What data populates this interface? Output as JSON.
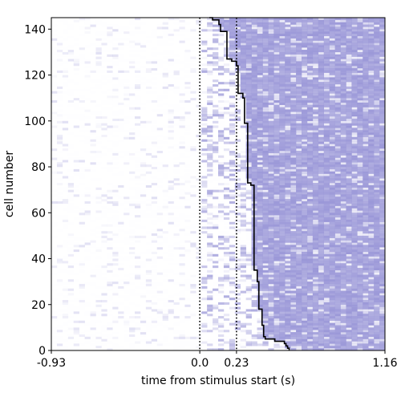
{
  "chart_data": {
    "type": "heatmap",
    "title": "",
    "xlabel": "time from stimulus start (s)",
    "ylabel": "cell number",
    "xlim": [
      -0.93,
      1.16
    ],
    "ylim": [
      0,
      145
    ],
    "x_ticks": [
      -0.93,
      0.0,
      0.23,
      1.16
    ],
    "x_tick_labels": [
      "-0.93",
      "0.0",
      "0.23",
      "1.16"
    ],
    "y_ticks": [
      0,
      20,
      40,
      60,
      80,
      100,
      120,
      140
    ],
    "y_tick_labels": [
      "0",
      "20",
      "40",
      "60",
      "80",
      "100",
      "120",
      "140"
    ],
    "n_cells": 145,
    "vertical_lines": [
      {
        "x": 0.0,
        "style": "dotted",
        "color": "#000000"
      },
      {
        "x": 0.23,
        "style": "dotted",
        "color": "#000000"
      }
    ],
    "response_onset_curve": {
      "color": "#000000",
      "points": [
        [
          0.56,
          0
        ],
        [
          0.55,
          1
        ],
        [
          0.54,
          2
        ],
        [
          0.53,
          3
        ],
        [
          0.47,
          4
        ],
        [
          0.41,
          5
        ],
        [
          0.4,
          6
        ],
        [
          0.4,
          10
        ],
        [
          0.39,
          11
        ],
        [
          0.39,
          17
        ],
        [
          0.37,
          18
        ],
        [
          0.37,
          29
        ],
        [
          0.36,
          30
        ],
        [
          0.36,
          34
        ],
        [
          0.34,
          35
        ],
        [
          0.34,
          70
        ],
        [
          0.32,
          72
        ],
        [
          0.3,
          73
        ],
        [
          0.3,
          98
        ],
        [
          0.28,
          99
        ],
        [
          0.27,
          110
        ],
        [
          0.24,
          112
        ],
        [
          0.23,
          124
        ],
        [
          0.2,
          126
        ],
        [
          0.17,
          127
        ],
        [
          0.17,
          137
        ],
        [
          0.13,
          139
        ],
        [
          0.12,
          142
        ],
        [
          0.08,
          144
        ],
        [
          0.06,
          145
        ]
      ]
    },
    "heat_color": "#9b98d8",
    "cell_color": "#ffffff",
    "grid": false
  }
}
